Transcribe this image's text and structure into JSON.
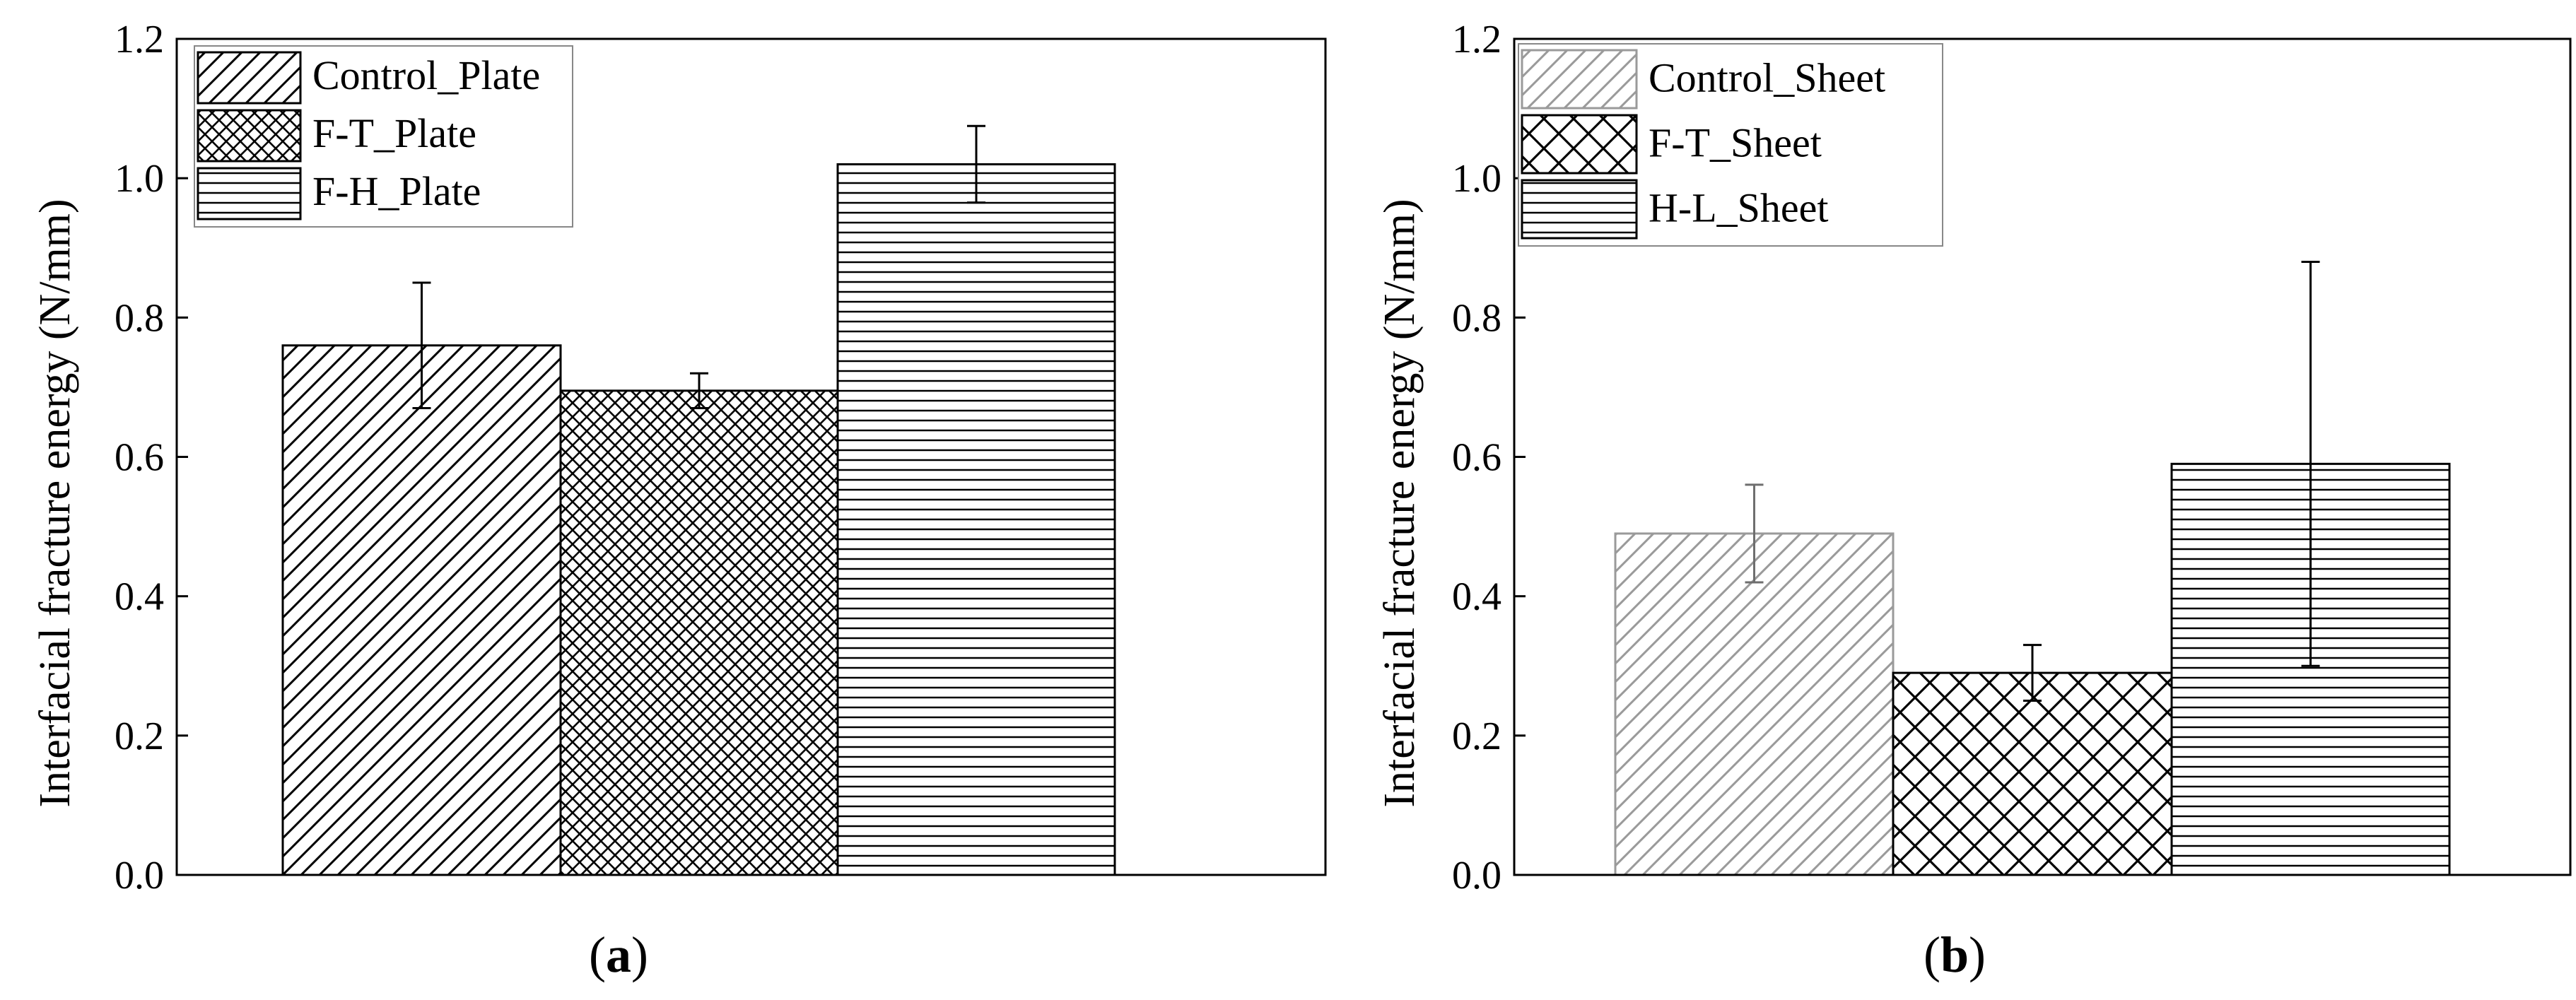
{
  "chart_data": [
    {
      "type": "bar",
      "caption": "a",
      "ylabel": "Interfacial fracture energy (N/mm)",
      "xlabel": "",
      "ylim": [
        0,
        1.2
      ],
      "yticks": [
        "0.0",
        "0.2",
        "0.4",
        "0.6",
        "0.8",
        "1.0",
        "1.2"
      ],
      "grid": false,
      "legend_position": "top-left",
      "series": [
        {
          "name": "Control_Plate",
          "value": 0.76,
          "error": 0.09,
          "pattern": "diagonal",
          "color": "#000000"
        },
        {
          "name": "F-T_Plate",
          "value": 0.695,
          "error": 0.025,
          "pattern": "crosshatch-fine",
          "color": "#000000"
        },
        {
          "name": "F-H_Plate",
          "value": 1.02,
          "error": 0.055,
          "pattern": "horizontal",
          "color": "#000000"
        }
      ]
    },
    {
      "type": "bar",
      "caption": "b",
      "ylabel": "Interfacial fracture energy (N/mm)",
      "xlabel": "",
      "ylim": [
        0,
        1.2
      ],
      "yticks": [
        "0.0",
        "0.2",
        "0.4",
        "0.6",
        "0.8",
        "1.0",
        "1.2"
      ],
      "grid": false,
      "legend_position": "top-left",
      "series": [
        {
          "name": "Control_Sheet",
          "value": 0.49,
          "error": 0.07,
          "pattern": "diagonal",
          "color": "#9a9a9a"
        },
        {
          "name": "F-T_Sheet",
          "value": 0.29,
          "error": 0.04,
          "pattern": "crosshatch-wide",
          "color": "#000000"
        },
        {
          "name": "H-L_Sheet",
          "value": 0.59,
          "error": 0.29,
          "pattern": "horizontal",
          "color": "#000000"
        }
      ]
    }
  ]
}
